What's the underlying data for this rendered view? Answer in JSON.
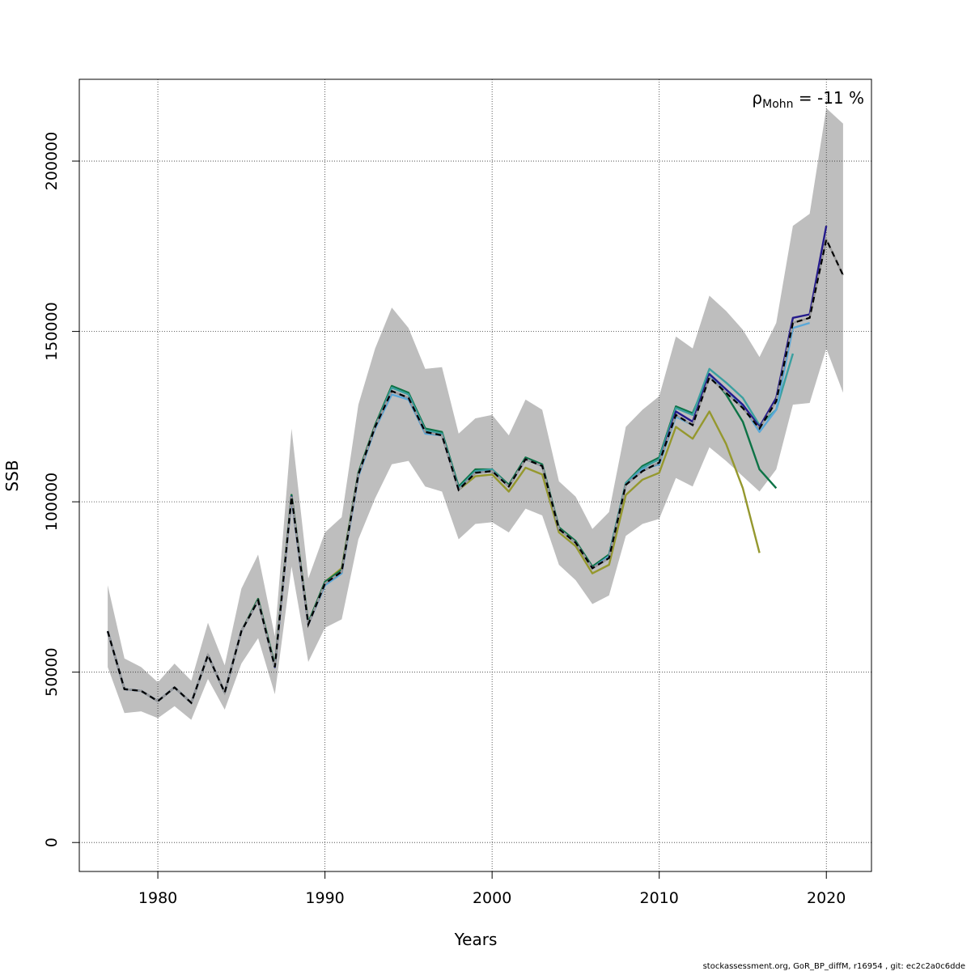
{
  "chart_data": {
    "type": "line",
    "xlabel": "Years",
    "ylabel": "SSB",
    "xlim": [
      1975.3,
      2022.7
    ],
    "ylim": [
      -8500,
      224000
    ],
    "x_ticks": [
      1980,
      1990,
      2000,
      2010,
      2020
    ],
    "y_ticks": [
      0,
      50000,
      100000,
      150000,
      200000
    ],
    "x_tick_labels": [
      "1980",
      "1990",
      "2000",
      "2010",
      "2020"
    ],
    "y_tick_labels": [
      "0",
      "50000",
      "100000",
      "150000",
      "200000"
    ],
    "grid": true,
    "annotation": {
      "rho": "ρ",
      "sub": "Mohn",
      "value": " = -11 %"
    },
    "footer": "stockassessment.org, GoR_BP_diffM, r16954 , git: ec2c2a0c6dde",
    "band": {
      "x": [
        1977,
        1978,
        1979,
        1980,
        1981,
        1982,
        1983,
        1984,
        1985,
        1986,
        1987,
        1988,
        1989,
        1990,
        1991,
        1992,
        1993,
        1994,
        1995,
        1996,
        1997,
        1998,
        1999,
        2000,
        2001,
        2002,
        2003,
        2004,
        2005,
        2006,
        2007,
        2008,
        2009,
        2010,
        2011,
        2012,
        2013,
        2014,
        2015,
        2016,
        2017,
        2018,
        2019,
        2020,
        2021
      ],
      "upper": [
        75500,
        54000,
        51500,
        47000,
        52500,
        47500,
        64500,
        52000,
        74500,
        84500,
        60500,
        121500,
        77500,
        91000,
        95500,
        128500,
        145000,
        157000,
        151000,
        139000,
        139500,
        120000,
        124500,
        125500,
        119500,
        130000,
        127000,
        106000,
        101500,
        92000,
        97000,
        122000,
        127000,
        131000,
        148500,
        145000,
        160500,
        156000,
        150500,
        142500,
        152500,
        181000,
        184500,
        215500,
        211000
      ],
      "lower": [
        51500,
        38000,
        38500,
        36500,
        40000,
        36000,
        48000,
        39000,
        52500,
        60000,
        43500,
        81000,
        53000,
        63000,
        65500,
        89000,
        101000,
        111000,
        112000,
        104500,
        103000,
        89000,
        93500,
        94000,
        91000,
        98000,
        96000,
        81500,
        77000,
        70000,
        72500,
        90000,
        93500,
        95000,
        107000,
        104500,
        116000,
        112000,
        107500,
        103000,
        109500,
        128500,
        129000,
        145000,
        132000
      ]
    },
    "series": [
      {
        "color": "#000000",
        "dashed": true,
        "x": [
          1977,
          1978,
          1979,
          1980,
          1981,
          1982,
          1983,
          1984,
          1985,
          1986,
          1987,
          1988,
          1989,
          1990,
          1991,
          1992,
          1993,
          1994,
          1995,
          1996,
          1997,
          1998,
          1999,
          2000,
          2001,
          2002,
          2003,
          2004,
          2005,
          2006,
          2007,
          2008,
          2009,
          2010,
          2011,
          2012,
          2013,
          2014,
          2015,
          2016,
          2017,
          2018,
          2019,
          2020,
          2021
        ],
        "y": [
          62000,
          45000,
          44500,
          41500,
          45500,
          41000,
          55000,
          44000,
          62000,
          71000,
          51500,
          101500,
          64000,
          76000,
          79500,
          108000,
          122000,
          132500,
          130500,
          120500,
          119500,
          103500,
          108500,
          109000,
          104500,
          112500,
          110500,
          92000,
          88000,
          80500,
          83500,
          105000,
          109000,
          111500,
          125500,
          122500,
          136500,
          132000,
          127500,
          121500,
          129500,
          152500,
          154000,
          177000,
          166500
        ]
      },
      {
        "color": "#241a8c",
        "dashed": false,
        "x": [
          1977,
          1978,
          1979,
          1980,
          1981,
          1982,
          1983,
          1984,
          1985,
          1986,
          1987,
          1988,
          1989,
          1990,
          1991,
          1992,
          1993,
          1994,
          1995,
          1996,
          1997,
          1998,
          1999,
          2000,
          2001,
          2002,
          2003,
          2004,
          2005,
          2006,
          2007,
          2008,
          2009,
          2010,
          2011,
          2012,
          2013,
          2014,
          2015,
          2016,
          2017,
          2018,
          2019,
          2020
        ],
        "y": [
          62000,
          45000,
          44500,
          41500,
          45500,
          41000,
          55000,
          44000,
          62000,
          71000,
          51500,
          101500,
          64000,
          76000,
          79500,
          108000,
          122000,
          132500,
          130500,
          120500,
          119500,
          103500,
          108500,
          109000,
          104500,
          112500,
          110500,
          92000,
          88000,
          80500,
          83500,
          105000,
          109000,
          111500,
          126500,
          123500,
          137500,
          133000,
          128500,
          122000,
          130500,
          154000,
          155000,
          181000
        ]
      },
      {
        "color": "#5aa8d8",
        "dashed": false,
        "x": [
          1977,
          1978,
          1979,
          1980,
          1981,
          1982,
          1983,
          1984,
          1985,
          1986,
          1987,
          1988,
          1989,
          1990,
          1991,
          1992,
          1993,
          1994,
          1995,
          1996,
          1997,
          1998,
          1999,
          2000,
          2001,
          2002,
          2003,
          2004,
          2005,
          2006,
          2007,
          2008,
          2009,
          2010,
          2011,
          2012,
          2013,
          2014,
          2015,
          2016,
          2017,
          2018,
          2019
        ],
        "y": [
          62000,
          45000,
          44500,
          41500,
          45500,
          41000,
          55000,
          44000,
          62000,
          71000,
          51500,
          101000,
          64000,
          75500,
          79000,
          107500,
          121500,
          131500,
          130000,
          120000,
          119500,
          103500,
          108500,
          109000,
          104500,
          112500,
          110500,
          92000,
          88000,
          80500,
          84000,
          105000,
          109500,
          111000,
          125000,
          122500,
          137000,
          133000,
          128000,
          120500,
          127000,
          151000,
          152500
        ]
      },
      {
        "color": "#3aa0a0",
        "dashed": false,
        "x": [
          1977,
          1978,
          1979,
          1980,
          1981,
          1982,
          1983,
          1984,
          1985,
          1986,
          1987,
          1988,
          1989,
          1990,
          1991,
          1992,
          1993,
          1994,
          1995,
          1996,
          1997,
          1998,
          1999,
          2000,
          2001,
          2002,
          2003,
          2004,
          2005,
          2006,
          2007,
          2008,
          2009,
          2010,
          2011,
          2012,
          2013,
          2014,
          2015,
          2016,
          2017,
          2018
        ],
        "y": [
          62000,
          45000,
          44500,
          41500,
          45500,
          41000,
          55000,
          44000,
          62000,
          71000,
          51500,
          101500,
          64000,
          76000,
          79500,
          108000,
          122000,
          133500,
          131500,
          121000,
          120000,
          104000,
          109000,
          109500,
          104500,
          112500,
          110500,
          92000,
          88000,
          80500,
          84000,
          105500,
          110000,
          112500,
          127500,
          125500,
          139000,
          135000,
          130500,
          122500,
          127000,
          143500
        ]
      },
      {
        "color": "#0d7346",
        "dashed": false,
        "x": [
          1977,
          1978,
          1979,
          1980,
          1981,
          1982,
          1983,
          1984,
          1985,
          1986,
          1987,
          1988,
          1989,
          1990,
          1991,
          1992,
          1993,
          1994,
          1995,
          1996,
          1997,
          1998,
          1999,
          2000,
          2001,
          2002,
          2003,
          2004,
          2005,
          2006,
          2007,
          2008,
          2009,
          2010,
          2011,
          2012,
          2013,
          2014,
          2015,
          2016,
          2017
        ],
        "y": [
          62000,
          45000,
          44500,
          41500,
          45500,
          41000,
          55000,
          44000,
          62000,
          71500,
          52000,
          102000,
          64500,
          76500,
          80000,
          108500,
          122500,
          134000,
          132000,
          121500,
          120500,
          104500,
          109500,
          109500,
          105000,
          113000,
          111000,
          92500,
          88500,
          81000,
          84500,
          105500,
          110500,
          113000,
          128000,
          126000,
          137500,
          131500,
          123500,
          109500,
          104000
        ]
      },
      {
        "color": "#95982e",
        "dashed": false,
        "x": [
          1977,
          1978,
          1979,
          1980,
          1981,
          1982,
          1983,
          1984,
          1985,
          1986,
          1987,
          1988,
          1989,
          1990,
          1991,
          1992,
          1993,
          1994,
          1995,
          1996,
          1997,
          1998,
          1999,
          2000,
          2001,
          2002,
          2003,
          2004,
          2005,
          2006,
          2007,
          2008,
          2009,
          2010,
          2011,
          2012,
          2013,
          2014,
          2015,
          2016
        ],
        "y": [
          62000,
          45000,
          44500,
          41500,
          45500,
          41000,
          55000,
          44000,
          62000,
          71500,
          52000,
          102000,
          64500,
          76500,
          80500,
          108500,
          122500,
          134000,
          131500,
          121500,
          120000,
          103500,
          107500,
          108000,
          103000,
          110000,
          108000,
          91000,
          87000,
          79000,
          81500,
          102000,
          106500,
          108500,
          122000,
          118500,
          126500,
          117000,
          104000,
          85000
        ]
      }
    ]
  }
}
